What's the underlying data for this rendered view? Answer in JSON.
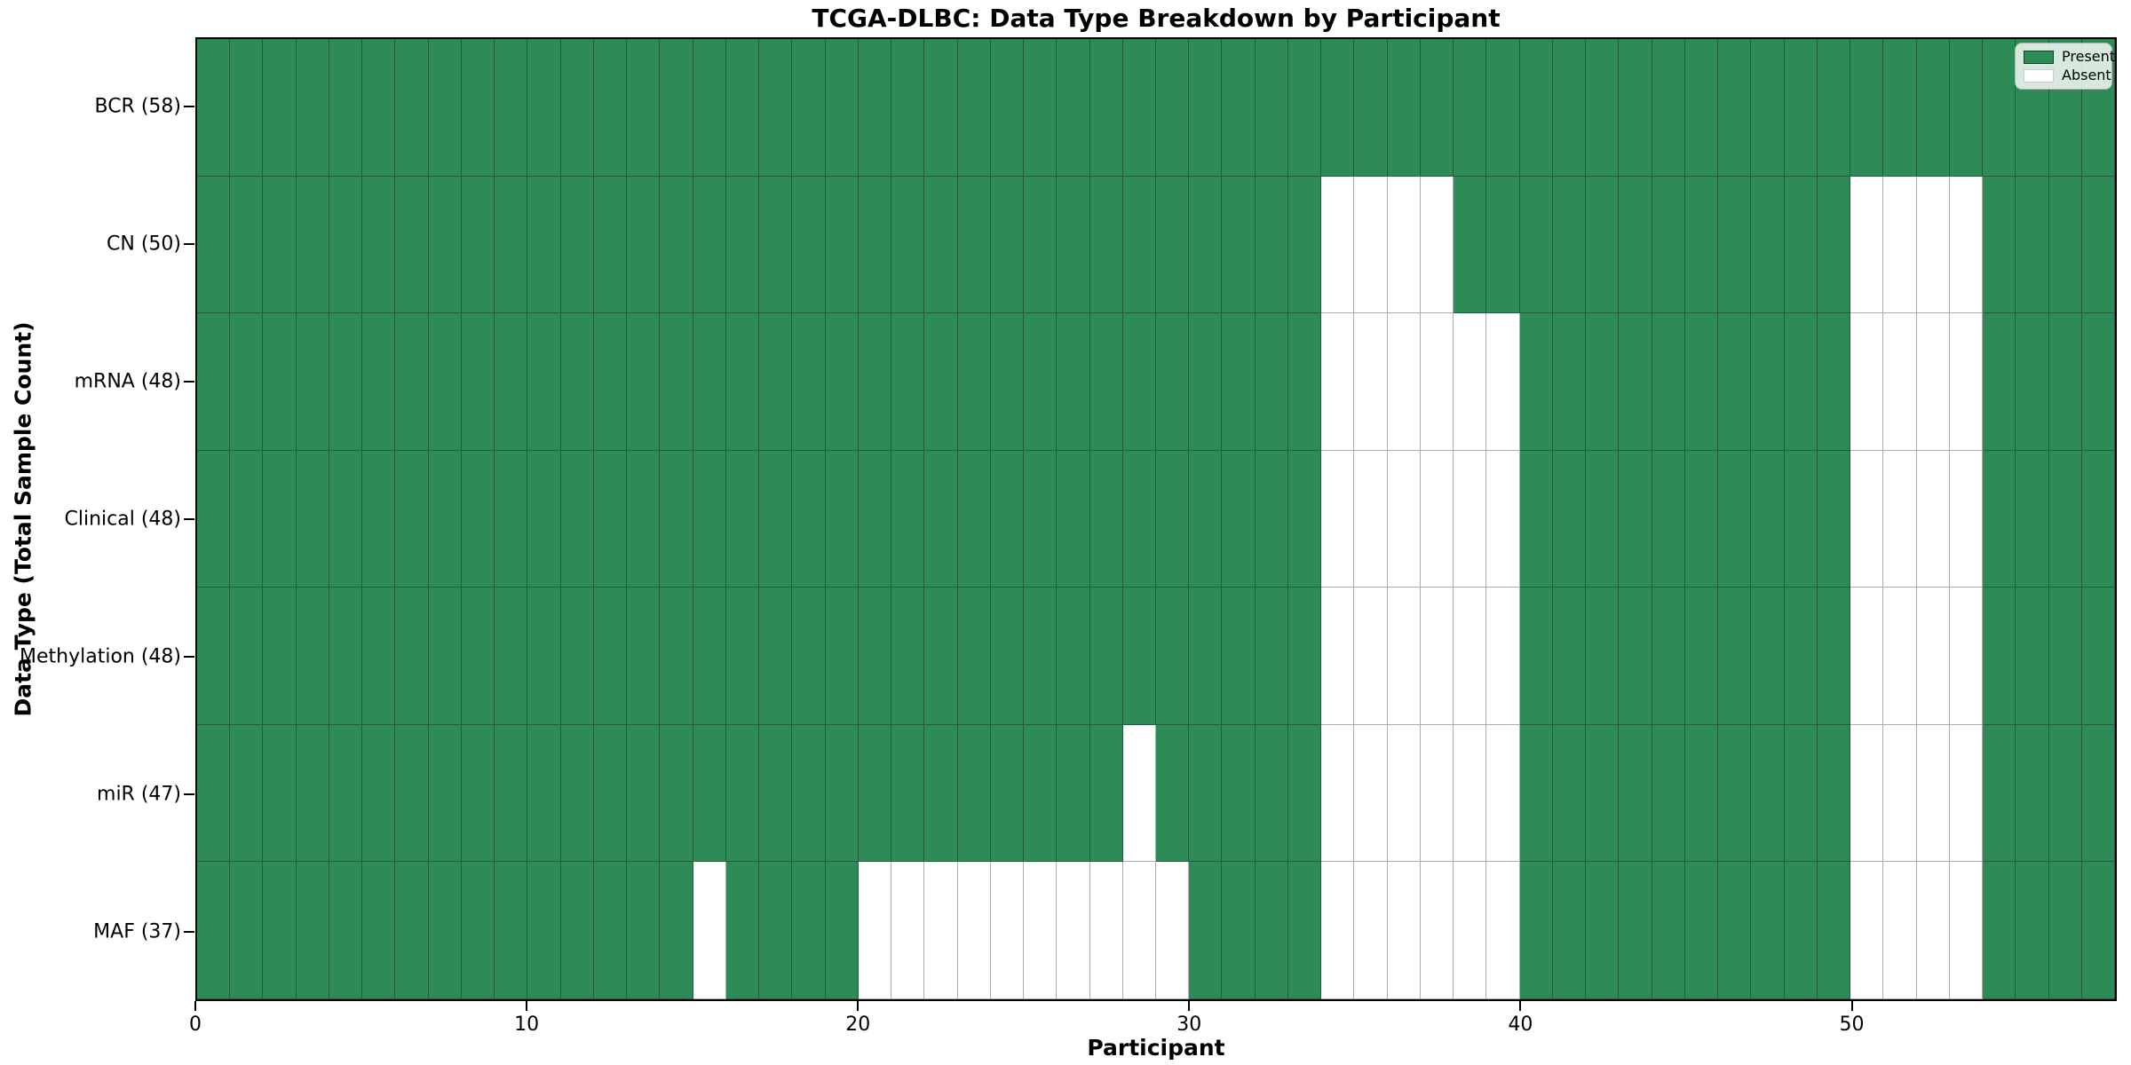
{
  "figure": {
    "title": "TCGA-DLBC: Data Type Breakdown by Participant",
    "xlabel": "Participant",
    "ylabel": "Data Type (Total Sample Count)"
  },
  "legend": {
    "present_label": "Present",
    "absent_label": "Absent"
  },
  "chart_data": {
    "type": "heatmap",
    "title": "TCGA-DLBC: Data Type Breakdown by Participant",
    "xlabel": "Participant",
    "ylabel": "Data Type (Total Sample Count)",
    "legend_position": "upper right",
    "grid": true,
    "n_participants": 58,
    "x_range": [
      0,
      58
    ],
    "x_ticks": [
      0,
      10,
      20,
      30,
      40,
      50
    ],
    "colors": {
      "present": "#2e8b57",
      "absent": "#ffffff",
      "cell_line": "rgba(0,0,0,0.32)",
      "frame": "#000000"
    },
    "legend": [
      {
        "label": "Present",
        "color": "#2e8b57"
      },
      {
        "label": "Absent",
        "color": "#ffffff"
      }
    ],
    "rows": [
      {
        "data_type": "BCR",
        "label": "BCR (58)",
        "total_samples": 58,
        "absent_participants": []
      },
      {
        "data_type": "CN",
        "label": "CN (50)",
        "total_samples": 50,
        "absent_participants": [
          34,
          35,
          36,
          37,
          50,
          51,
          52,
          53
        ]
      },
      {
        "data_type": "mRNA",
        "label": "mRNA (48)",
        "total_samples": 48,
        "absent_participants": [
          34,
          35,
          36,
          37,
          38,
          39,
          50,
          51,
          52,
          53
        ]
      },
      {
        "data_type": "Clinical",
        "label": "Clinical (48)",
        "total_samples": 48,
        "absent_participants": [
          34,
          35,
          36,
          37,
          38,
          39,
          50,
          51,
          52,
          53
        ]
      },
      {
        "data_type": "Methylation",
        "label": "Methylation (48)",
        "total_samples": 48,
        "absent_participants": [
          34,
          35,
          36,
          37,
          38,
          39,
          50,
          51,
          52,
          53
        ]
      },
      {
        "data_type": "miR",
        "label": "miR (47)",
        "total_samples": 47,
        "absent_participants": [
          28,
          34,
          35,
          36,
          37,
          38,
          39,
          50,
          51,
          52,
          53
        ]
      },
      {
        "data_type": "MAF",
        "label": "MAF (37)",
        "total_samples": 37,
        "absent_participants": [
          15,
          20,
          21,
          22,
          23,
          24,
          25,
          26,
          27,
          28,
          29,
          34,
          35,
          36,
          37,
          38,
          39,
          50,
          51,
          52,
          53
        ]
      }
    ]
  }
}
